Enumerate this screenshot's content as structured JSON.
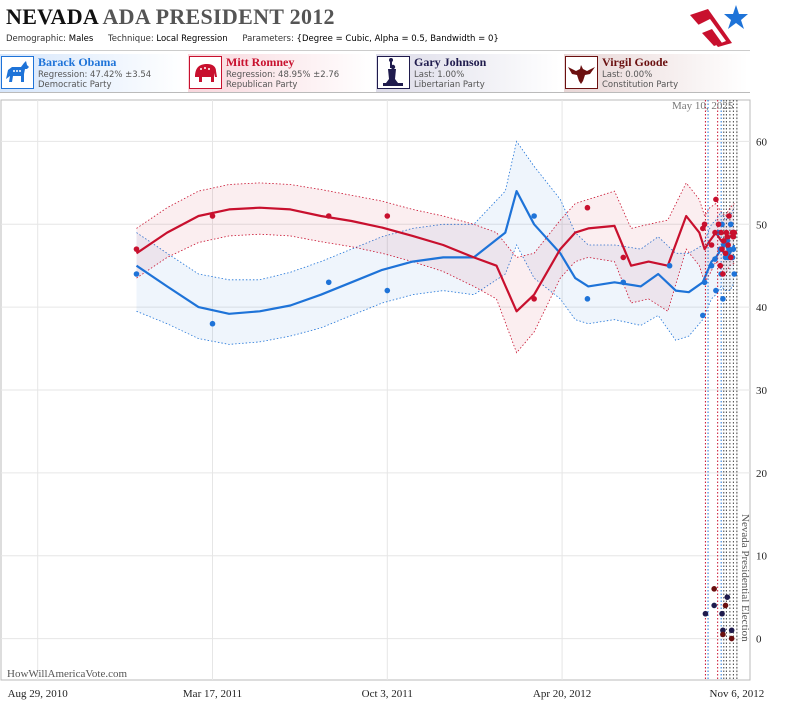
{
  "header": {
    "title_state": "NEVADA",
    "title_rest": "ADA PRESIDENT 2012",
    "params": [
      {
        "key": "Demographic:",
        "value": "Males"
      },
      {
        "key": "Technique:",
        "value": "Local Regression"
      },
      {
        "key": "Parameters:",
        "value": "{Degree = Cubic, Alpha = 0.5, Bandwidth = 0}"
      }
    ]
  },
  "candidates": [
    {
      "name": "Barack Obama",
      "stat": "Regression: 47.42% ±3.54",
      "party": "Democratic Party",
      "color": "#1e73d8",
      "icon": "donkey-icon"
    },
    {
      "name": "Mitt Romney",
      "stat": "Regression: 48.95% ±2.76",
      "party": "Republican Party",
      "color": "#c8102e",
      "icon": "elephant-icon"
    },
    {
      "name": "Gary Johnson",
      "stat": "Last: 1.00%",
      "party": "Libertarian Party",
      "color": "#1f1b4d",
      "icon": "statue-of-liberty-icon"
    },
    {
      "name": "Virgil Goode",
      "stat": "Last: 0.00%",
      "party": "Constitution Party",
      "color": "#6b1010",
      "icon": "eagle-icon"
    }
  ],
  "updated": "May 10, 2025",
  "watermark": "HowWillAmericaVote.com",
  "election_label": "Nevada Presidential Election",
  "chart_data": {
    "type": "scatter",
    "xlabel": "",
    "ylabel": "",
    "x_range": [
      "2010-07-18",
      "2012-11-21"
    ],
    "ylim": [
      -5,
      65
    ],
    "x_ticks": [
      {
        "date": "2010-08-29",
        "label": "Aug 29, 2010"
      },
      {
        "date": "2011-03-17",
        "label": "Mar 17, 2011"
      },
      {
        "date": "2011-10-03",
        "label": "Oct 3, 2011"
      },
      {
        "date": "2012-04-20",
        "label": "Apr 20, 2012"
      },
      {
        "date": "2012-11-06",
        "label": "Nov 6, 2012"
      }
    ],
    "y_ticks": [
      0,
      10,
      20,
      30,
      40,
      50,
      60
    ],
    "grid": true,
    "election_date": "2012-11-06",
    "poll_dates": [
      "2012-10-01",
      "2012-10-04",
      "2012-10-15",
      "2012-10-19",
      "2012-10-22",
      "2012-10-25",
      "2012-10-29",
      "2012-11-02",
      "2012-11-06"
    ],
    "series": [
      {
        "name": "Barack Obama",
        "color": "#1e73d8",
        "points": [
          [
            "2010-12-20",
            44
          ],
          [
            "2011-03-17",
            38
          ],
          [
            "2011-07-28",
            43
          ],
          [
            "2011-10-03",
            42
          ],
          [
            "2012-03-19",
            51
          ],
          [
            "2012-05-19",
            41
          ],
          [
            "2012-06-29",
            43
          ],
          [
            "2012-08-21",
            45
          ],
          [
            "2012-09-28",
            39
          ],
          [
            "2012-09-30",
            43
          ],
          [
            "2012-10-08",
            45
          ],
          [
            "2012-10-12",
            45.8
          ],
          [
            "2012-10-13",
            42
          ],
          [
            "2012-10-16",
            49
          ],
          [
            "2012-10-18",
            47
          ],
          [
            "2012-10-19",
            44
          ],
          [
            "2012-10-20",
            50
          ],
          [
            "2012-10-21",
            41
          ],
          [
            "2012-10-22",
            47.5
          ],
          [
            "2012-10-24",
            46
          ],
          [
            "2012-10-25",
            46.5
          ],
          [
            "2012-10-26",
            48
          ],
          [
            "2012-10-27",
            46
          ],
          [
            "2012-10-28",
            47
          ],
          [
            "2012-10-30",
            50
          ],
          [
            "2012-11-01",
            46
          ],
          [
            "2012-11-02",
            47
          ],
          [
            "2012-11-03",
            44
          ]
        ],
        "trend": [
          [
            "2010-12-20",
            45
          ],
          [
            "2011-01-24",
            42.5
          ],
          [
            "2011-03-01",
            40
          ],
          [
            "2011-04-05",
            39.2
          ],
          [
            "2011-05-10",
            39.5
          ],
          [
            "2011-06-14",
            40.2
          ],
          [
            "2011-07-19",
            41.5
          ],
          [
            "2011-08-23",
            43
          ],
          [
            "2011-09-27",
            44.5
          ],
          [
            "2011-11-01",
            45.5
          ],
          [
            "2011-12-06",
            46
          ],
          [
            "2012-01-10",
            46
          ],
          [
            "2012-02-15",
            49
          ],
          [
            "2012-02-28",
            54
          ],
          [
            "2012-03-19",
            50
          ],
          [
            "2012-04-18",
            46.5
          ],
          [
            "2012-05-05",
            43.5
          ],
          [
            "2012-05-20",
            42.5
          ],
          [
            "2012-06-19",
            43
          ],
          [
            "2012-07-19",
            42.5
          ],
          [
            "2012-08-08",
            44
          ],
          [
            "2012-08-28",
            42
          ],
          [
            "2012-09-12",
            41.8
          ],
          [
            "2012-09-28",
            43
          ],
          [
            "2012-10-08",
            45.5
          ],
          [
            "2012-10-13",
            46
          ],
          [
            "2012-10-19",
            47
          ],
          [
            "2012-10-24",
            46.2
          ],
          [
            "2012-10-29",
            46.5
          ],
          [
            "2012-11-03",
            47.5
          ]
        ],
        "band_upper": [
          [
            "2010-12-20",
            49
          ],
          [
            "2011-01-24",
            46.5
          ],
          [
            "2011-03-01",
            44
          ],
          [
            "2011-04-05",
            43.3
          ],
          [
            "2011-05-10",
            43.3
          ],
          [
            "2011-06-14",
            44.2
          ],
          [
            "2011-07-19",
            45.5
          ],
          [
            "2011-08-23",
            47
          ],
          [
            "2011-09-27",
            48.5
          ],
          [
            "2011-11-01",
            49.5
          ],
          [
            "2011-12-06",
            50
          ],
          [
            "2012-01-10",
            50
          ],
          [
            "2012-02-15",
            54
          ],
          [
            "2012-02-28",
            60
          ],
          [
            "2012-03-19",
            57
          ],
          [
            "2012-04-18",
            53
          ],
          [
            "2012-05-05",
            49
          ],
          [
            "2012-05-20",
            47.5
          ],
          [
            "2012-06-19",
            47.5
          ],
          [
            "2012-07-19",
            47
          ],
          [
            "2012-08-08",
            48.5
          ],
          [
            "2012-08-28",
            46.5
          ],
          [
            "2012-09-12",
            46.5
          ],
          [
            "2012-09-28",
            47.5
          ],
          [
            "2012-10-08",
            50
          ],
          [
            "2012-10-13",
            50.5
          ],
          [
            "2012-10-19",
            51.5
          ],
          [
            "2012-10-24",
            50.5
          ],
          [
            "2012-10-29",
            51
          ],
          [
            "2012-11-03",
            52
          ]
        ],
        "band_lower": [
          [
            "2010-12-20",
            39.5
          ],
          [
            "2011-01-24",
            38
          ],
          [
            "2011-03-01",
            36.2
          ],
          [
            "2011-04-05",
            35.5
          ],
          [
            "2011-05-10",
            35.8
          ],
          [
            "2011-06-14",
            36.5
          ],
          [
            "2011-07-19",
            37.5
          ],
          [
            "2011-08-23",
            39
          ],
          [
            "2011-09-27",
            40.5
          ],
          [
            "2011-11-01",
            41.5
          ],
          [
            "2011-12-06",
            42
          ],
          [
            "2012-01-10",
            41.5
          ],
          [
            "2012-02-15",
            44
          ],
          [
            "2012-02-28",
            47.5
          ],
          [
            "2012-03-19",
            43.5
          ],
          [
            "2012-04-18",
            41
          ],
          [
            "2012-05-05",
            38.5
          ],
          [
            "2012-05-20",
            38
          ],
          [
            "2012-06-19",
            38.5
          ],
          [
            "2012-07-19",
            37.8
          ],
          [
            "2012-08-08",
            39
          ],
          [
            "2012-08-28",
            36
          ],
          [
            "2012-09-12",
            36.5
          ],
          [
            "2012-09-28",
            38.5
          ],
          [
            "2012-10-08",
            41
          ],
          [
            "2012-10-13",
            41.5
          ],
          [
            "2012-10-19",
            42.5
          ],
          [
            "2012-10-24",
            42
          ],
          [
            "2012-10-29",
            42
          ],
          [
            "2012-11-03",
            43
          ]
        ]
      },
      {
        "name": "Mitt Romney",
        "color": "#c8102e",
        "points": [
          [
            "2010-12-20",
            47
          ],
          [
            "2011-03-17",
            51
          ],
          [
            "2011-07-28",
            51
          ],
          [
            "2011-10-03",
            51
          ],
          [
            "2012-03-19",
            41
          ],
          [
            "2012-05-19",
            52
          ],
          [
            "2012-06-29",
            46
          ],
          [
            "2012-09-28",
            49.5
          ],
          [
            "2012-09-30",
            50
          ],
          [
            "2012-10-08",
            47.5
          ],
          [
            "2012-10-12",
            49
          ],
          [
            "2012-10-13",
            53
          ],
          [
            "2012-10-16",
            50
          ],
          [
            "2012-10-18",
            45
          ],
          [
            "2012-10-19",
            49
          ],
          [
            "2012-10-20",
            47
          ],
          [
            "2012-10-21",
            44
          ],
          [
            "2012-10-22",
            48
          ],
          [
            "2012-10-24",
            46.5
          ],
          [
            "2012-10-25",
            49
          ],
          [
            "2012-10-26",
            48.5
          ],
          [
            "2012-10-27",
            47.5
          ],
          [
            "2012-10-28",
            51
          ],
          [
            "2012-10-30",
            46
          ],
          [
            "2012-11-01",
            49
          ],
          [
            "2012-11-02",
            48.5
          ],
          [
            "2012-11-03",
            49
          ]
        ],
        "trend": [
          [
            "2010-12-20",
            46.5
          ],
          [
            "2011-01-24",
            49
          ],
          [
            "2011-03-01",
            51
          ],
          [
            "2011-04-05",
            51.8
          ],
          [
            "2011-05-10",
            52
          ],
          [
            "2011-06-14",
            51.8
          ],
          [
            "2011-07-19",
            51
          ],
          [
            "2011-08-23",
            50.4
          ],
          [
            "2011-09-27",
            49.6
          ],
          [
            "2011-11-01",
            48.6
          ],
          [
            "2011-12-06",
            47.5
          ],
          [
            "2012-01-10",
            46
          ],
          [
            "2012-02-05",
            45
          ],
          [
            "2012-02-28",
            39.5
          ],
          [
            "2012-03-19",
            41.5
          ],
          [
            "2012-04-18",
            47
          ],
          [
            "2012-05-05",
            49
          ],
          [
            "2012-05-20",
            49.5
          ],
          [
            "2012-06-19",
            49.8
          ],
          [
            "2012-07-08",
            45
          ],
          [
            "2012-07-28",
            45.5
          ],
          [
            "2012-08-19",
            45
          ],
          [
            "2012-09-09",
            51
          ],
          [
            "2012-09-24",
            49
          ],
          [
            "2012-09-30",
            47
          ],
          [
            "2012-10-06",
            48
          ],
          [
            "2012-10-13",
            49
          ],
          [
            "2012-10-19",
            48
          ],
          [
            "2012-10-24",
            47.5
          ],
          [
            "2012-10-29",
            48.5
          ],
          [
            "2012-11-03",
            48.9
          ]
        ],
        "band_upper": [
          [
            "2010-12-20",
            49.5
          ],
          [
            "2011-01-24",
            52
          ],
          [
            "2011-03-01",
            54
          ],
          [
            "2011-04-05",
            54.8
          ],
          [
            "2011-05-10",
            55
          ],
          [
            "2011-06-14",
            54.8
          ],
          [
            "2011-07-19",
            54.2
          ],
          [
            "2011-08-23",
            53.5
          ],
          [
            "2011-09-27",
            52.8
          ],
          [
            "2011-11-01",
            51.8
          ],
          [
            "2011-12-06",
            51
          ],
          [
            "2012-01-10",
            50
          ],
          [
            "2012-02-05",
            49
          ],
          [
            "2012-02-28",
            46
          ],
          [
            "2012-03-19",
            46.5
          ],
          [
            "2012-04-18",
            50.5
          ],
          [
            "2012-05-05",
            52.5
          ],
          [
            "2012-05-20",
            53
          ],
          [
            "2012-06-19",
            54
          ],
          [
            "2012-07-08",
            49.5
          ],
          [
            "2012-07-28",
            50
          ],
          [
            "2012-08-19",
            50.5
          ],
          [
            "2012-09-09",
            55
          ],
          [
            "2012-09-24",
            53
          ],
          [
            "2012-09-30",
            51
          ],
          [
            "2012-10-06",
            52
          ],
          [
            "2012-10-13",
            52.5
          ],
          [
            "2012-10-19",
            51.5
          ],
          [
            "2012-10-24",
            51
          ],
          [
            "2012-10-29",
            52
          ],
          [
            "2012-11-03",
            52.5
          ]
        ],
        "band_lower": [
          [
            "2010-12-20",
            43.5
          ],
          [
            "2011-01-24",
            46
          ],
          [
            "2011-03-01",
            47.8
          ],
          [
            "2011-04-05",
            48.6
          ],
          [
            "2011-05-10",
            48.8
          ],
          [
            "2011-06-14",
            48.6
          ],
          [
            "2011-07-19",
            47.9
          ],
          [
            "2011-08-23",
            47.3
          ],
          [
            "2011-09-27",
            46.5
          ],
          [
            "2011-11-01",
            45.5
          ],
          [
            "2011-12-06",
            44.3
          ],
          [
            "2012-01-10",
            42.5
          ],
          [
            "2012-02-05",
            41
          ],
          [
            "2012-02-28",
            34.5
          ],
          [
            "2012-03-19",
            37
          ],
          [
            "2012-04-18",
            43.5
          ],
          [
            "2012-05-05",
            45.5
          ],
          [
            "2012-05-20",
            46
          ],
          [
            "2012-06-19",
            45.5
          ],
          [
            "2012-07-08",
            40.5
          ],
          [
            "2012-07-28",
            41
          ],
          [
            "2012-08-19",
            39.5
          ],
          [
            "2012-09-09",
            47
          ],
          [
            "2012-09-24",
            45
          ],
          [
            "2012-09-30",
            43
          ],
          [
            "2012-10-06",
            44
          ],
          [
            "2012-10-13",
            45.5
          ],
          [
            "2012-10-19",
            44.5
          ],
          [
            "2012-10-24",
            44
          ],
          [
            "2012-10-29",
            45
          ],
          [
            "2012-11-03",
            45.3
          ]
        ]
      },
      {
        "name": "Gary Johnson",
        "color": "#1f1b4d",
        "points": [
          [
            "2012-10-01",
            3
          ],
          [
            "2012-10-11",
            4
          ],
          [
            "2012-10-20",
            3
          ],
          [
            "2012-10-21",
            1
          ],
          [
            "2012-10-26",
            5
          ],
          [
            "2012-10-31",
            1
          ]
        ]
      },
      {
        "name": "Virgil Goode",
        "color": "#6b1010",
        "points": [
          [
            "2012-10-11",
            6
          ],
          [
            "2012-10-21",
            0.5
          ],
          [
            "2012-10-24",
            4
          ],
          [
            "2012-10-31",
            0
          ]
        ]
      }
    ]
  }
}
